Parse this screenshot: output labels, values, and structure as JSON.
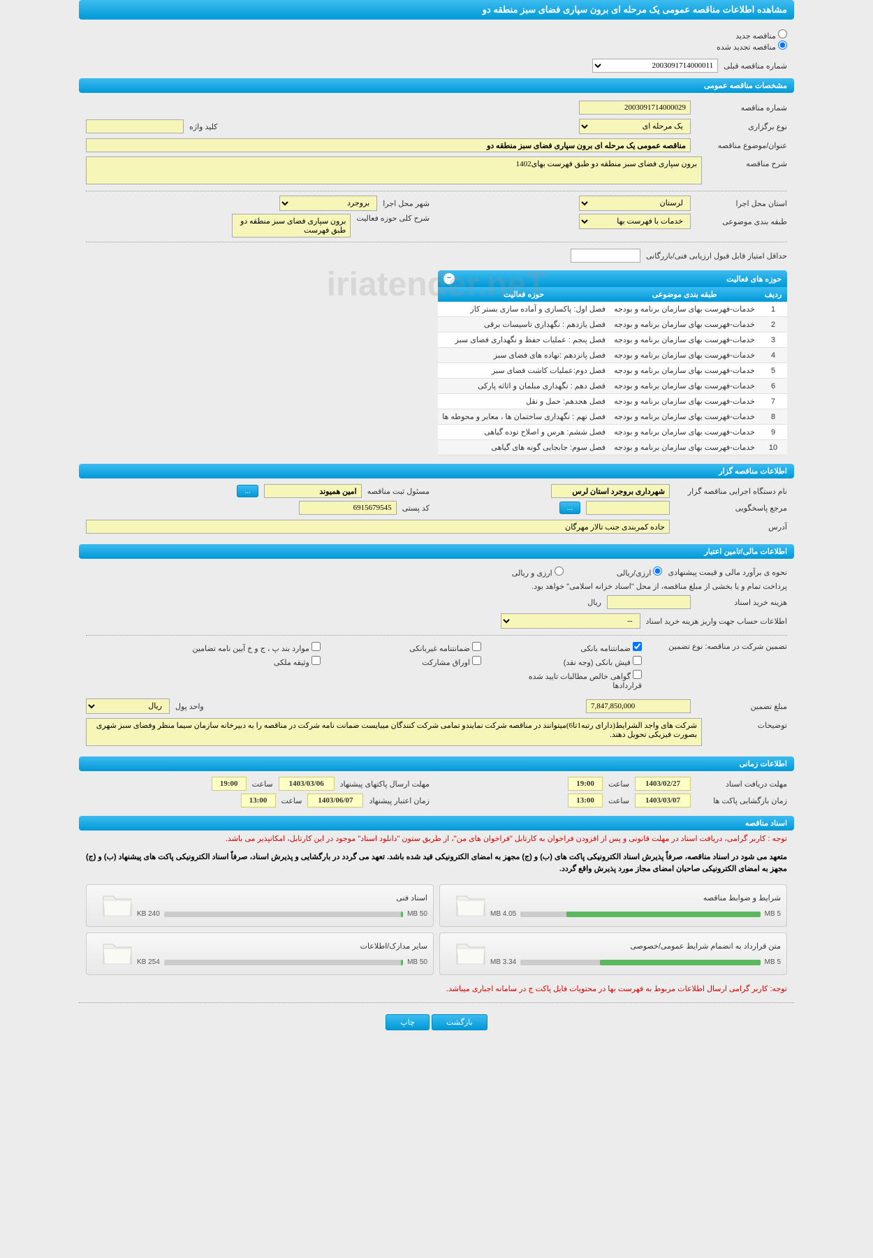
{
  "page_title": "مشاهده اطلاعات مناقصه عمومی یک مرحله ای برون سپاری فضای سبز منطقه دو",
  "radio": {
    "new_label": "مناقصه جدید",
    "renewed_label": "مناقصه تجدید شده",
    "prev_number_label": "شماره مناقصه قبلی",
    "prev_number_value": "2003091714000011"
  },
  "sections": {
    "general": "مشخصات مناقصه عمومی",
    "organizer": "اطلاعات مناقصه گزار",
    "financial": "اطلاعات مالی/تامین اعتبار",
    "timing": "اطلاعات زمانی",
    "docs": "اسناد مناقصه"
  },
  "general": {
    "tender_number_label": "شماره مناقصه",
    "tender_number": "2003091714000029",
    "holding_type_label": "نوع برگزاری",
    "holding_type": "یک مرحله ای",
    "keyword_label": "کلید واژه",
    "keyword": "",
    "subject_label": "عنوان/موضوع مناقصه",
    "subject": "مناقصه عمومی یک مرحله ای برون سپاری فضای سبز منطقه دو",
    "desc_label": "شرح مناقصه",
    "desc": "برون سپاری فضای سبز منطقه دو طبق فهرست بهای1402",
    "province_label": "استان محل اجرا",
    "province": "لرستان",
    "city_label": "شهر محل اجرا",
    "city": "بروجرد",
    "category_label": "طبقه بندی موضوعی",
    "category": "خدمات با فهرست بها",
    "scope_label": "شرح کلی حوزه فعالیت",
    "scope": "برون سپاری فضای سبز منطقه دو طبق فهرست",
    "min_score_label": "حداقل امتیاز قابل قبول ارزیابی فنی/بازرگانی",
    "min_score": ""
  },
  "activity": {
    "panel_title": "حوزه های فعالیت",
    "col_idx": "ردیف",
    "col_category": "طبقه بندی موضوعی",
    "col_scope": "حوزه فعالیت",
    "rows": [
      {
        "i": "1",
        "cat": "خدمات-فهرست بهای سازمان برنامه و بودجه",
        "scope": "فصل اول:   پاکسازی و آماده سازی بستر کار"
      },
      {
        "i": "2",
        "cat": "خدمات-فهرست بهای سازمان برنامه و بودجه",
        "scope": "فصل یازدهم : نگهداری تاسیسات برقی"
      },
      {
        "i": "3",
        "cat": "خدمات-فهرست بهای سازمان برنامه و بودجه",
        "scope": "فصل پنجم : عملیات حفظ و نگهداری فضای سبز"
      },
      {
        "i": "4",
        "cat": "خدمات-فهرست بهای سازمان برنامه و بودجه",
        "scope": "فصل پانزدهم :نهاده های فضای سبز"
      },
      {
        "i": "5",
        "cat": "خدمات-فهرست بهای سازمان برنامه و بودجه",
        "scope": "فصل دوم:عملیات کاشت فضای سبز"
      },
      {
        "i": "6",
        "cat": "خدمات-فهرست بهای سازمان برنامه و بودجه",
        "scope": "فصل دهم : نگهداری مبلمان و اثاثه پارکی"
      },
      {
        "i": "7",
        "cat": "خدمات-فهرست بهای سازمان برنامه و بودجه",
        "scope": "فصل هجدهم: حمل و نقل"
      },
      {
        "i": "8",
        "cat": "خدمات-فهرست بهای سازمان برنامه و بودجه",
        "scope": "فصل نهم : نگهداری ساختمان ها ، معابر و محوطه ها"
      },
      {
        "i": "9",
        "cat": "خدمات-فهرست بهای سازمان برنامه و بودجه",
        "scope": "فصل ششم: هرس و اصلاح توده گیاهی"
      },
      {
        "i": "10",
        "cat": "خدمات-فهرست بهای سازمان برنامه و بودجه",
        "scope": "فصل سوم: جابجایی گونه های گیاهی"
      }
    ]
  },
  "organizer": {
    "exec_label": "نام دستگاه اجرایی مناقصه گزار",
    "exec": "شهرداری بروجرد استان لرس",
    "register_label": "مسئول ثبت مناقصه",
    "register": "امین همیوند",
    "response_label": "مرجع پاسخگویی",
    "response": "",
    "postal_label": "کد پستی",
    "postal": "6915679545",
    "address_label": "آدرس",
    "address": "جاده کمربندی جنب تالار مهرگان",
    "dots_btn": "..."
  },
  "financial": {
    "estimate_label": "نحوه ی برآورد مالی و قیمت پیشنهادی",
    "opt_rial": "ارزی/ریالی",
    "opt_both": "ارزی و ریالی",
    "treasury_note": "پرداخت تمام و یا بخشی از مبلغ مناقصه، از محل \"اسناد خزانه اسلامی\" خواهد بود.",
    "doc_cost_label": "هزینه خرید اسناد",
    "doc_cost": "",
    "currency": "ریال",
    "payment_info_label": "اطلاعات حساب جهت واریز هزینه خرید اسناد",
    "payment_info": "--",
    "guarantee_type_label": "تضمین شرکت در مناقصه:   نوع تضمین",
    "chk_bank": "ضمانتنامه بانکی",
    "chk_nonbank": "ضمانتنامه غیربانکی",
    "chk_regs": "موارد بند پ ، ج و خ آیین نامه تضامین",
    "chk_cash": "فیش بانکی (وجه نقد)",
    "chk_bonds": "اوراق مشارکت",
    "chk_property": "وثیقه ملکی",
    "chk_receivables": "گواهی خالص مطالبات تایید شده قراردادها",
    "amount_label": "مبلغ تضمین",
    "amount": "7,847,850,000",
    "unit_label": "واحد پول",
    "unit": "ریال",
    "explain_label": "توضیحات",
    "explain": "شرکت های واجد الشرایط(دارای رتبه1تا6)میتوانند در مناقصه شرکت نمایندو تمامی شرکت کنندگان میبایست ضمانت نامه شرکت در مناقصه را به دبیرخانه سازمان سیما منظر وفضای سبز شهری بصورت فیزیکی تحویل دهند."
  },
  "timing": {
    "receive_deadline_label": "مهلت دریافت اسناد",
    "receive_deadline_date": "1403/02/27",
    "time_label": "ساعت",
    "receive_deadline_time": "19:00",
    "submit_deadline_label": "مهلت ارسال پاکتهای پیشنهاد",
    "submit_deadline_date": "1403/03/06",
    "submit_deadline_time": "19:00",
    "opening_label": "زمان بازگشایی پاکت ها",
    "opening_date": "1403/03/07",
    "opening_time": "13:00",
    "validity_label": "زمان اعتبار پیشنهاد",
    "validity_date": "1403/06/07",
    "validity_time": "13:00"
  },
  "docs": {
    "notice1": "توجه : کاربر گرامی، دریافت اسناد در مهلت قانونی و پس از افزودن فراخوان به کارتابل \"فراخوان های من\"، از طریق ستون \"دانلود اسناد\" موجود در این کارتابل، امکانپذیر می باشد.",
    "notice2": "متعهد می شود در اسناد مناقصه، صرفاً پذیرش اسناد الکترونیکی پاکت های (ب) و (ج) مجهز به امضای الکترونیکی قید شده باشد. تعهد می گردد در بارگشایی و پذیرش اسناد، صرفاً اسناد الکترونیکی پاکت های پیشنهاد (ب) و (ج) مجهز به امضای الکترونیکی صاحبان امضای مجاز مورد پذیرش واقع گردد.",
    "notice3": "توجه: کاربر گرامی ارسال اطلاعات مربوط به فهرست بها در محتویات فایل پاکت ج در سامانه اجباری میباشد.",
    "cards": [
      {
        "title": "شرایط و ضوابط مناقصه",
        "used": "4.05 MB",
        "max": "5 MB",
        "pct": 81
      },
      {
        "title": "اسناد فنی",
        "used": "240 KB",
        "max": "50 MB",
        "pct": 1
      },
      {
        "title": "متن قرارداد به انضمام شرایط عمومی/خصوصی",
        "used": "3.34 MB",
        "max": "5 MB",
        "pct": 67
      },
      {
        "title": "سایر مدارک/اطلاعات",
        "used": "254 KB",
        "max": "50 MB",
        "pct": 1
      }
    ]
  },
  "footer": {
    "back": "بازگشت",
    "print": "چاپ"
  },
  "watermark": "iriatender.neT",
  "colors": {
    "blue_grad_top": "#3dbcf0",
    "blue_grad_bot": "#0099d8",
    "yellow_bg": "#f6f6b8",
    "yellow_date": "#feffc5",
    "red_text": "#d00",
    "green_bar": "#5cb85c",
    "bg": "#ececec"
  }
}
